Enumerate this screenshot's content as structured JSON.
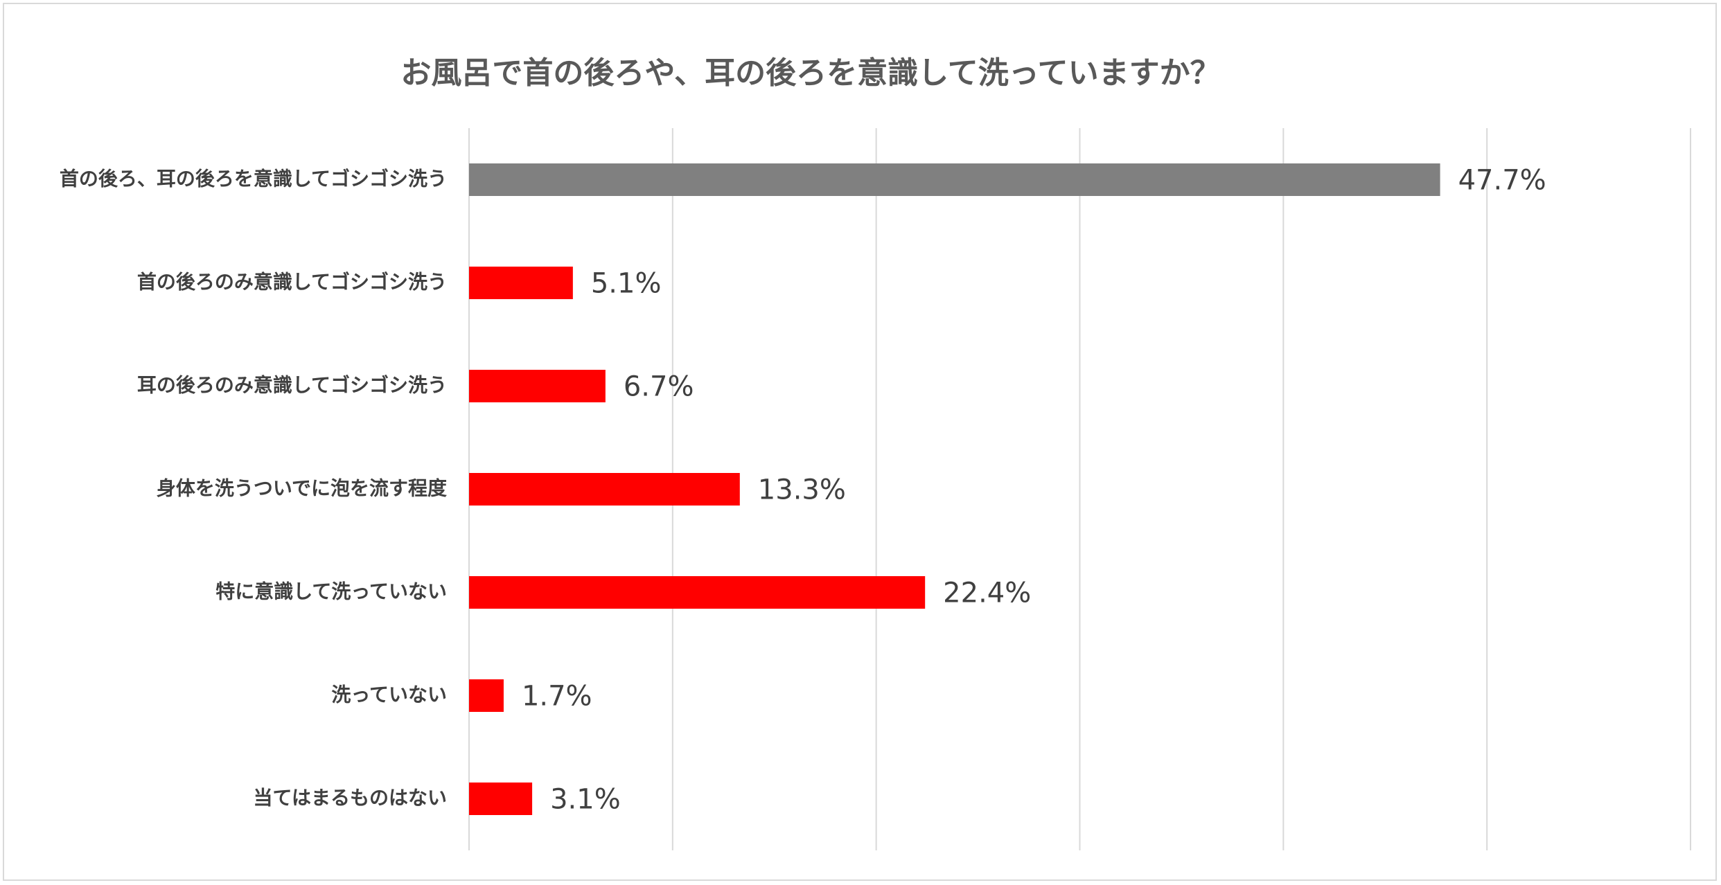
{
  "chart_data": {
    "type": "bar",
    "orientation": "horizontal",
    "title": "お風呂で首の後ろや、耳の後ろを意識して洗っていますか？",
    "categories": [
      "首の後ろ、耳の後ろを意識してゴシゴシ洗う",
      "首の後ろのみ意識してゴシゴシ洗う",
      "耳の後ろのみ意識してゴシゴシ洗う",
      "身体を洗うついでに泡を流す程度",
      "特に意識して洗っていない",
      "洗っていない",
      "当てはまるものはない"
    ],
    "values": [
      47.7,
      5.1,
      6.7,
      13.3,
      22.4,
      1.7,
      3.1
    ],
    "value_labels": [
      "47.7%",
      "5.1%",
      "6.7%",
      "13.3%",
      "22.4%",
      "1.7%",
      "3.1%"
    ],
    "bar_colors": [
      "#808080",
      "#ff0000",
      "#ff0000",
      "#ff0000",
      "#ff0000",
      "#ff0000",
      "#ff0000"
    ],
    "xlim": [
      0,
      60
    ],
    "x_gridlines": [
      0,
      10,
      20,
      30,
      40,
      50,
      60
    ],
    "grid": true,
    "legend": "none"
  },
  "colors": {
    "highlight_bar": "#808080",
    "bar": "#ff0000",
    "gridline": "#d9d9d9",
    "text": "#404040",
    "title": "#595959"
  }
}
